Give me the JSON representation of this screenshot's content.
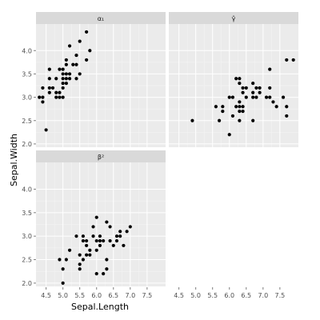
{
  "chart_data": {
    "type": "scatter",
    "layout": "facet_wrap 2x2",
    "xlabel": "Sepal.Length",
    "ylabel": "Sepal.Width",
    "xlim": [
      4.2,
      8.05
    ],
    "ylim": [
      1.93,
      4.57
    ],
    "x_ticks": [
      4.5,
      5.0,
      5.5,
      6.0,
      6.5,
      7.0,
      7.5
    ],
    "x_tick_labels": [
      "4.5",
      "5.0",
      "5.5",
      "6.0",
      "6.5",
      "7.0",
      "7.5"
    ],
    "y_ticks": [
      2.0,
      2.5,
      3.0,
      3.5,
      4.0
    ],
    "y_tick_labels": [
      "2.0",
      "2.5",
      "3.0",
      "3.5",
      "4.0"
    ],
    "grid": true,
    "panels": [
      {
        "label": "α₁",
        "points": [
          [
            4.3,
            3.0
          ],
          [
            4.4,
            2.9
          ],
          [
            4.4,
            3.0
          ],
          [
            4.4,
            3.2
          ],
          [
            4.5,
            2.3
          ],
          [
            4.6,
            3.1
          ],
          [
            4.6,
            3.2
          ],
          [
            4.6,
            3.4
          ],
          [
            4.6,
            3.6
          ],
          [
            4.7,
            3.2
          ],
          [
            4.8,
            3.0
          ],
          [
            4.8,
            3.1
          ],
          [
            4.8,
            3.4
          ],
          [
            4.9,
            3.0
          ],
          [
            4.9,
            3.1
          ],
          [
            4.9,
            3.6
          ],
          [
            5.0,
            3.0
          ],
          [
            5.0,
            3.2
          ],
          [
            5.0,
            3.3
          ],
          [
            5.0,
            3.4
          ],
          [
            5.0,
            3.5
          ],
          [
            5.0,
            3.6
          ],
          [
            5.1,
            3.3
          ],
          [
            5.1,
            3.4
          ],
          [
            5.1,
            3.5
          ],
          [
            5.1,
            3.7
          ],
          [
            5.1,
            3.8
          ],
          [
            5.2,
            3.4
          ],
          [
            5.2,
            3.5
          ],
          [
            5.2,
            4.1
          ],
          [
            5.3,
            3.7
          ],
          [
            5.4,
            3.4
          ],
          [
            5.4,
            3.7
          ],
          [
            5.4,
            3.9
          ],
          [
            5.5,
            3.5
          ],
          [
            5.5,
            4.2
          ],
          [
            5.7,
            3.8
          ],
          [
            5.7,
            4.4
          ],
          [
            5.8,
            4.0
          ]
        ]
      },
      {
        "label": "γ̂",
        "points": [
          [
            4.9,
            2.5
          ],
          [
            5.6,
            2.8
          ],
          [
            5.7,
            2.5
          ],
          [
            5.8,
            2.7
          ],
          [
            5.8,
            2.8
          ],
          [
            6.0,
            2.2
          ],
          [
            6.0,
            3.0
          ],
          [
            6.1,
            2.6
          ],
          [
            6.1,
            3.0
          ],
          [
            6.2,
            2.8
          ],
          [
            6.2,
            3.4
          ],
          [
            6.3,
            2.5
          ],
          [
            6.3,
            2.7
          ],
          [
            6.3,
            2.8
          ],
          [
            6.3,
            2.9
          ],
          [
            6.3,
            3.3
          ],
          [
            6.3,
            3.4
          ],
          [
            6.4,
            2.7
          ],
          [
            6.4,
            2.8
          ],
          [
            6.4,
            3.1
          ],
          [
            6.4,
            3.2
          ],
          [
            6.5,
            3.0
          ],
          [
            6.5,
            3.2
          ],
          [
            6.7,
            2.5
          ],
          [
            6.7,
            3.0
          ],
          [
            6.7,
            3.1
          ],
          [
            6.7,
            3.3
          ],
          [
            6.8,
            3.0
          ],
          [
            6.8,
            3.2
          ],
          [
            6.9,
            3.1
          ],
          [
            6.9,
            3.2
          ],
          [
            7.1,
            3.0
          ],
          [
            7.2,
            3.0
          ],
          [
            7.2,
            3.2
          ],
          [
            7.2,
            3.6
          ],
          [
            7.3,
            2.9
          ],
          [
            7.4,
            2.8
          ],
          [
            7.6,
            3.0
          ],
          [
            7.7,
            2.6
          ],
          [
            7.7,
            2.8
          ],
          [
            7.7,
            3.8
          ],
          [
            7.9,
            3.8
          ]
        ]
      },
      {
        "label": "β²",
        "points": [
          [
            4.9,
            2.5
          ],
          [
            5.0,
            2.0
          ],
          [
            5.0,
            2.3
          ],
          [
            5.1,
            2.5
          ],
          [
            5.2,
            2.7
          ],
          [
            5.4,
            3.0
          ],
          [
            5.5,
            2.3
          ],
          [
            5.5,
            2.4
          ],
          [
            5.5,
            2.6
          ],
          [
            5.6,
            2.5
          ],
          [
            5.6,
            2.9
          ],
          [
            5.6,
            3.0
          ],
          [
            5.7,
            2.6
          ],
          [
            5.7,
            2.8
          ],
          [
            5.7,
            2.9
          ],
          [
            5.8,
            2.6
          ],
          [
            5.8,
            2.7
          ],
          [
            5.9,
            3.0
          ],
          [
            5.9,
            3.2
          ],
          [
            6.0,
            2.2
          ],
          [
            6.0,
            2.7
          ],
          [
            6.0,
            2.9
          ],
          [
            6.0,
            3.4
          ],
          [
            6.1,
            2.8
          ],
          [
            6.1,
            2.9
          ],
          [
            6.1,
            3.0
          ],
          [
            6.2,
            2.2
          ],
          [
            6.2,
            2.9
          ],
          [
            6.3,
            2.3
          ],
          [
            6.3,
            2.5
          ],
          [
            6.3,
            3.3
          ],
          [
            6.4,
            2.9
          ],
          [
            6.4,
            3.2
          ],
          [
            6.5,
            2.8
          ],
          [
            6.6,
            2.9
          ],
          [
            6.6,
            3.0
          ],
          [
            6.7,
            3.0
          ],
          [
            6.7,
            3.1
          ],
          [
            6.8,
            2.8
          ],
          [
            6.9,
            3.1
          ],
          [
            7.0,
            3.2
          ]
        ]
      }
    ]
  }
}
